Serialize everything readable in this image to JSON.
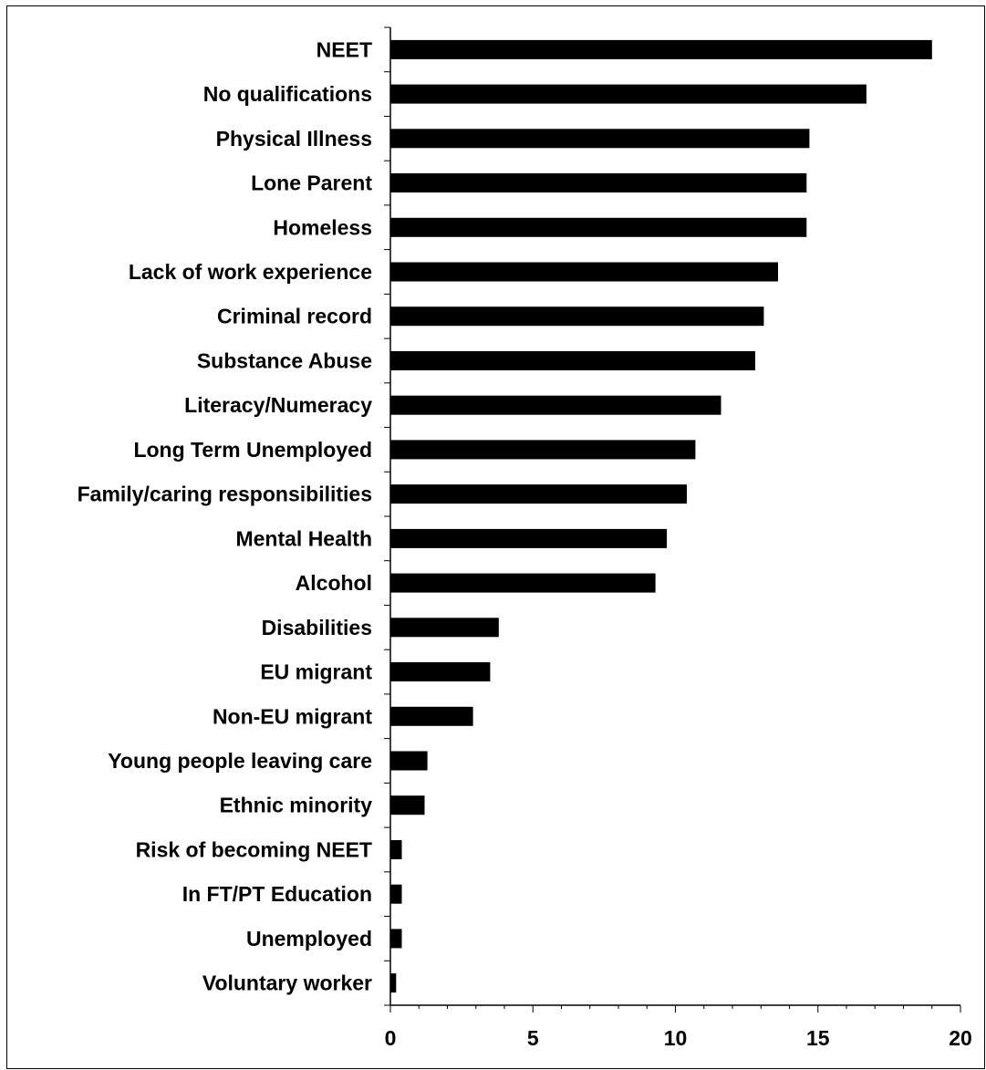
{
  "chart_data": {
    "type": "bar",
    "orientation": "horizontal",
    "categories": [
      "NEET",
      "No qualifications",
      "Physical Illness",
      "Lone Parent",
      "Homeless",
      "Lack of work experience",
      "Criminal record",
      "Substance Abuse",
      "Literacy/Numeracy",
      "Long Term Unemployed",
      "Family/caring responsibilities",
      "Mental Health",
      "Alcohol",
      "Disabilities",
      "EU migrant",
      "Non-EU migrant",
      "Young people leaving care",
      "Ethnic minority",
      "Risk of becoming NEET",
      "In FT/PT Education",
      "Unemployed",
      "Voluntary worker"
    ],
    "values": [
      19.0,
      16.7,
      14.7,
      14.6,
      14.6,
      13.6,
      13.1,
      12.8,
      11.6,
      10.7,
      10.4,
      9.7,
      9.3,
      3.8,
      3.5,
      2.9,
      1.3,
      1.2,
      0.4,
      0.4,
      0.4,
      0.2
    ],
    "xlim": [
      0,
      20
    ],
    "xticks": [
      "0",
      "5",
      "10",
      "15",
      "20"
    ],
    "bar_color": "#000000",
    "grid": false,
    "legend": "none"
  }
}
